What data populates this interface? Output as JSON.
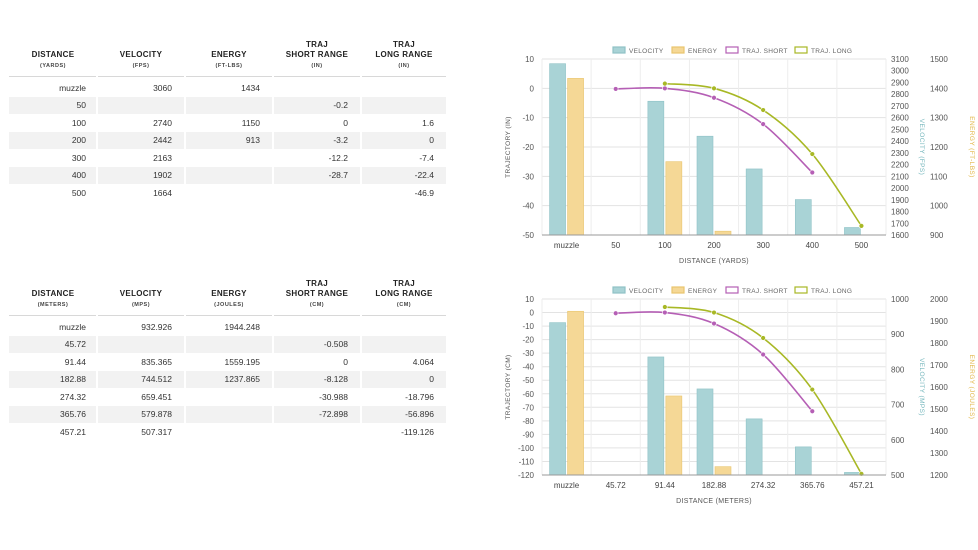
{
  "tables": [
    {
      "headers": [
        {
          "main": "DISTANCE",
          "sub": "(YARDS)"
        },
        {
          "main": "VELOCITY",
          "sub": "(FPS)"
        },
        {
          "main": "ENERGY",
          "sub": "(FT-LBS)"
        },
        {
          "main": "TRAJ\nSHORT RANGE",
          "sub": "(IN)"
        },
        {
          "main": "TRAJ\nLONG RANGE",
          "sub": "(IN)"
        }
      ],
      "rows": [
        [
          "muzzle",
          "3060",
          "1434",
          "",
          ""
        ],
        [
          "50",
          "",
          "",
          "-0.2",
          ""
        ],
        [
          "100",
          "2740",
          "1150",
          "0",
          "1.6"
        ],
        [
          "200",
          "2442",
          "913",
          "-3.2",
          "0"
        ],
        [
          "300",
          "2163",
          "",
          "-12.2",
          "-7.4"
        ],
        [
          "400",
          "1902",
          "",
          "-28.7",
          "-22.4"
        ],
        [
          "500",
          "1664",
          "",
          "",
          "-46.9"
        ]
      ]
    },
    {
      "headers": [
        {
          "main": "DISTANCE",
          "sub": "(METERS)"
        },
        {
          "main": "VELOCITY",
          "sub": "(MPS)"
        },
        {
          "main": "ENERGY",
          "sub": "(JOULES)"
        },
        {
          "main": "TRAJ\nSHORT RANGE",
          "sub": "(CM)"
        },
        {
          "main": "TRAJ\nLONG RANGE",
          "sub": "(CM)"
        }
      ],
      "rows": [
        [
          "muzzle",
          "932.926",
          "1944.248",
          "",
          ""
        ],
        [
          "45.72",
          "",
          "",
          "-0.508",
          ""
        ],
        [
          "91.44",
          "835.365",
          "1559.195",
          "0",
          "4.064"
        ],
        [
          "182.88",
          "744.512",
          "1237.865",
          "-8.128",
          "0"
        ],
        [
          "274.32",
          "659.451",
          "",
          "-30.988",
          "-18.796"
        ],
        [
          "365.76",
          "579.878",
          "",
          "-72.898",
          "-56.896"
        ],
        [
          "457.21",
          "507.317",
          "",
          "",
          "-119.126"
        ]
      ]
    }
  ],
  "chart_data": [
    {
      "type": "bar",
      "categories": [
        "muzzle",
        "50",
        "100",
        "200",
        "300",
        "400",
        "500"
      ],
      "xlabel": "DISTANCE (YARDS)",
      "legend": [
        "VELOCITY",
        "ENERGY",
        "TRAJ. SHORT",
        "TRAJ. LONG"
      ],
      "colors": {
        "velocity": "#a9d3d6",
        "energy": "#f5d896",
        "short": "#b55fb5",
        "long": "#a8b825"
      },
      "left_axis": {
        "label": "TRAJECTORY (IN)",
        "min": -50,
        "max": 10,
        "ticks": [
          10,
          0,
          -10,
          -20,
          -30,
          -40,
          -50
        ]
      },
      "velocity_axis": {
        "label": "VELOCITY (FPS)",
        "min": 1600,
        "max": 3100,
        "ticks": [
          3100,
          3000,
          2900,
          2800,
          2700,
          2600,
          2500,
          2400,
          2300,
          2200,
          2100,
          2000,
          1900,
          1800,
          1700,
          1600
        ]
      },
      "energy_axis": {
        "label": "ENERGY (FT-LBS)",
        "min": 900,
        "max": 1500,
        "ticks": [
          1500,
          1400,
          1300,
          1200,
          1100,
          1000,
          900
        ]
      },
      "series": [
        {
          "name": "VELOCITY",
          "axis": "velocity",
          "values": [
            3060,
            null,
            2740,
            2442,
            2163,
            1902,
            1664
          ]
        },
        {
          "name": "ENERGY",
          "axis": "energy",
          "values": [
            1434,
            null,
            1150,
            913,
            null,
            null,
            null
          ]
        },
        {
          "name": "TRAJ. SHORT",
          "axis": "left",
          "values": [
            null,
            -0.2,
            0,
            -3.2,
            -12.2,
            -28.7,
            null
          ]
        },
        {
          "name": "TRAJ. LONG",
          "axis": "left",
          "values": [
            null,
            null,
            1.6,
            0,
            -7.4,
            -22.4,
            -46.9
          ]
        }
      ]
    },
    {
      "type": "bar",
      "categories": [
        "muzzle",
        "45.72",
        "91.44",
        "182.88",
        "274.32",
        "365.76",
        "457.21"
      ],
      "xlabel": "DISTANCE (METERS)",
      "legend": [
        "VELOCITY",
        "ENERGY",
        "TRAJ. SHORT",
        "TRAJ. LONG"
      ],
      "colors": {
        "velocity": "#a9d3d6",
        "energy": "#f5d896",
        "short": "#b55fb5",
        "long": "#a8b825"
      },
      "left_axis": {
        "label": "TRAJECTORY (CM)",
        "min": -120,
        "max": 10,
        "ticks": [
          10,
          0,
          -10,
          -20,
          -30,
          -40,
          -50,
          -60,
          -70,
          -80,
          -90,
          -100,
          -110,
          -120
        ]
      },
      "velocity_axis": {
        "label": "VELOCITY (MPS)",
        "min": 500,
        "max": 1000,
        "ticks": [
          1000,
          900,
          800,
          700,
          600,
          500
        ]
      },
      "energy_axis": {
        "label": "ENERGY (JOULES)",
        "min": 1200,
        "max": 2000,
        "ticks": [
          2000,
          1900,
          1800,
          1700,
          1600,
          1500,
          1400,
          1300,
          1200
        ]
      },
      "series": [
        {
          "name": "VELOCITY",
          "axis": "velocity",
          "values": [
            932.926,
            null,
            835.365,
            744.512,
            659.451,
            579.878,
            507.317
          ]
        },
        {
          "name": "ENERGY",
          "axis": "energy",
          "values": [
            1944.248,
            null,
            1559.195,
            1237.865,
            null,
            null,
            null
          ]
        },
        {
          "name": "TRAJ. SHORT",
          "axis": "left",
          "values": [
            null,
            -0.508,
            0,
            -8.128,
            -30.988,
            -72.898,
            null
          ]
        },
        {
          "name": "TRAJ. LONG",
          "axis": "left",
          "values": [
            null,
            null,
            4.064,
            0,
            -18.796,
            -56.896,
            -119.126
          ]
        }
      ]
    }
  ]
}
